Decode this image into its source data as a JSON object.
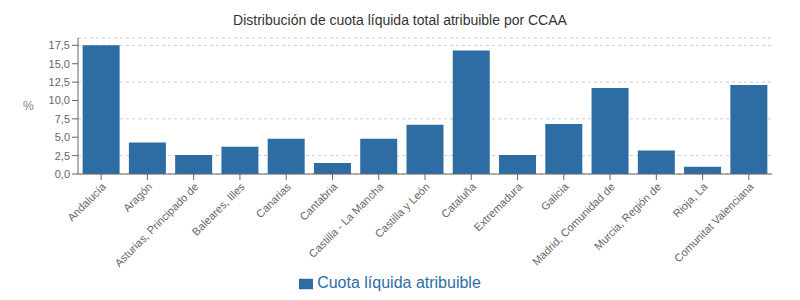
{
  "chart_data": {
    "type": "bar",
    "title": "Distribución de cuota líquida total atribuible por CCAA",
    "categories": [
      "Andalucía",
      "Aragón",
      "Asturias, Principado de",
      "Baleares, Illes",
      "Canarias",
      "Cantabria",
      "Castilla - La Mancha",
      "Castilla y León",
      "Cataluña",
      "Extremadura",
      "Galicia",
      "Madrid, Comunidad de",
      "Murcia, Región de",
      "Rioja, La",
      "Comunitat Valenciana"
    ],
    "series": [
      {
        "name": "Cuota líquida atribuible",
        "color": "#2E6DA4",
        "values": [
          17.5,
          4.3,
          2.6,
          3.7,
          4.8,
          1.5,
          4.8,
          6.7,
          16.8,
          2.6,
          6.8,
          11.7,
          3.2,
          1.0,
          12.1
        ]
      }
    ],
    "ylabel": "%",
    "ylim": [
      0,
      18.5
    ],
    "yticks": [
      {
        "value": 0.0,
        "label": "0,0"
      },
      {
        "value": 2.5,
        "label": "2,5"
      },
      {
        "value": 5.0,
        "label": "5,0"
      },
      {
        "value": 7.5,
        "label": "7,5"
      },
      {
        "value": 10.0,
        "label": "10,0"
      },
      {
        "value": 12.5,
        "label": "12,5"
      },
      {
        "value": 15.0,
        "label": "15,0"
      },
      {
        "value": 17.5,
        "label": "17,5"
      }
    ],
    "grid": true,
    "legend": "bottom"
  }
}
